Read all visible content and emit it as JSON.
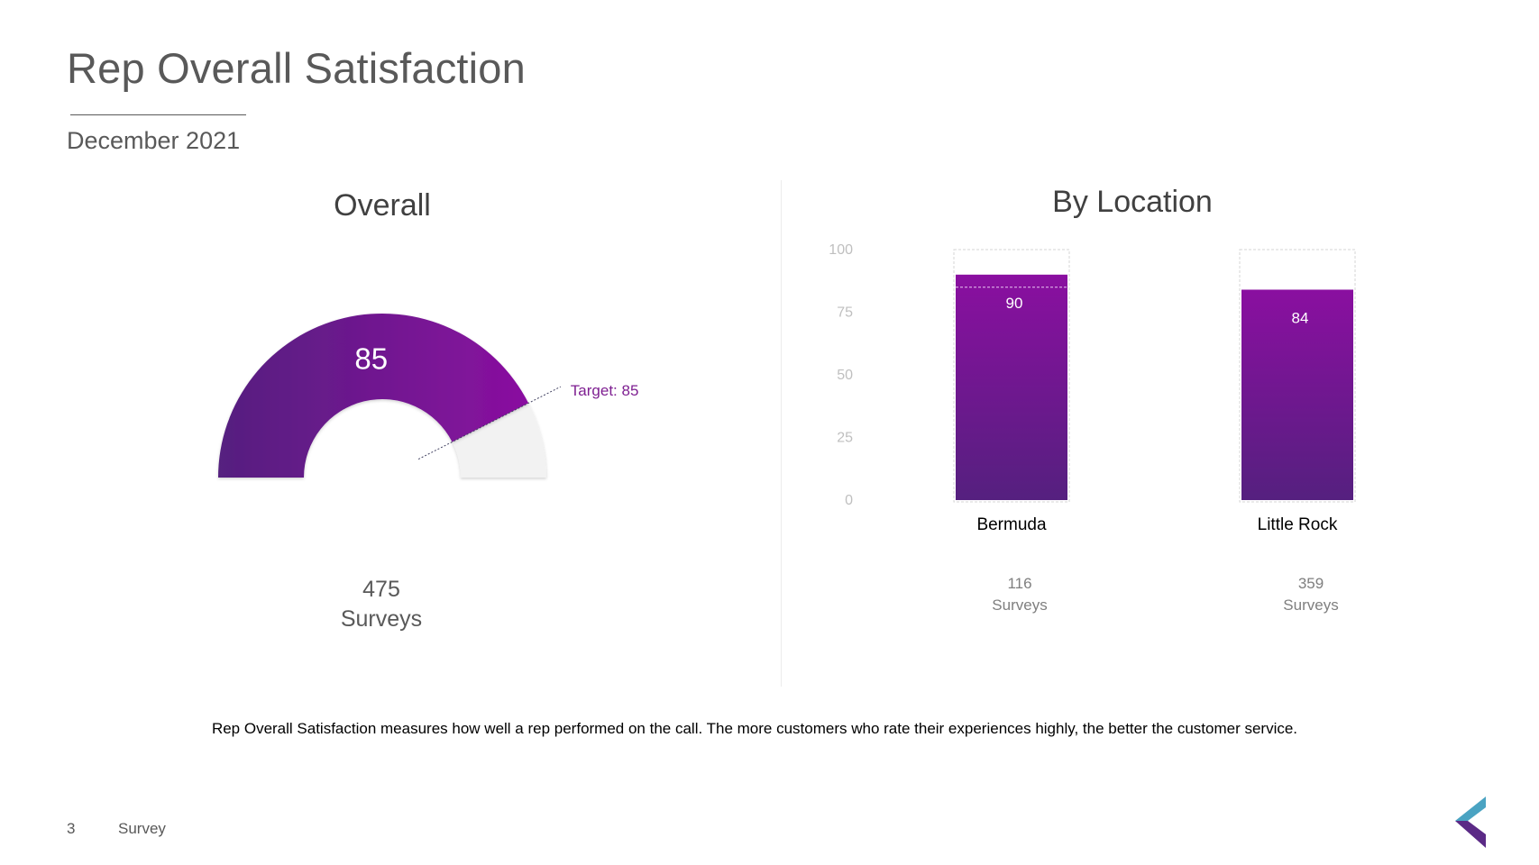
{
  "title": "Rep Overall Satisfaction",
  "subtitle": "December 2021",
  "overall": {
    "heading": "Overall",
    "surveys_count": "475",
    "surveys_label": "Surveys"
  },
  "by_location": {
    "heading": "By Location",
    "locations": [
      {
        "name": "Bermuda",
        "surveys_count": "116",
        "surveys_label": "Surveys"
      },
      {
        "name": "Little Rock",
        "surveys_count": "359",
        "surveys_label": "Surveys"
      }
    ]
  },
  "footnote": "Rep Overall Satisfaction measures how well a rep performed on the call. The more customers who rate their experiences highly, the better the customer service.",
  "footer": {
    "page_number": "3",
    "label": "Survey"
  },
  "colors": {
    "gradient_dark": "#55207f",
    "gradient_light": "#8a0fa0",
    "gauge_track": "#f2f2f2",
    "target_text": "#7e1f91",
    "axis_text": "#bfbfbf",
    "logo_teal": "#4aa3c2",
    "logo_purple": "#5b2a86"
  },
  "chart_data": [
    {
      "type": "gauge",
      "value": 85,
      "value_label": "85",
      "min": 0,
      "max": 100,
      "target": 85,
      "target_label": "Target: 85"
    },
    {
      "type": "bar",
      "categories": [
        "Bermuda",
        "Little Rock"
      ],
      "values": [
        90,
        84
      ],
      "value_labels": [
        "90",
        "84"
      ],
      "target": 85,
      "ylim": [
        0,
        100
      ],
      "yticks": [
        0,
        25,
        50,
        75,
        100
      ],
      "ytick_labels": [
        "0",
        "25",
        "50",
        "75",
        "100"
      ],
      "grid": false,
      "legend": "none"
    }
  ]
}
